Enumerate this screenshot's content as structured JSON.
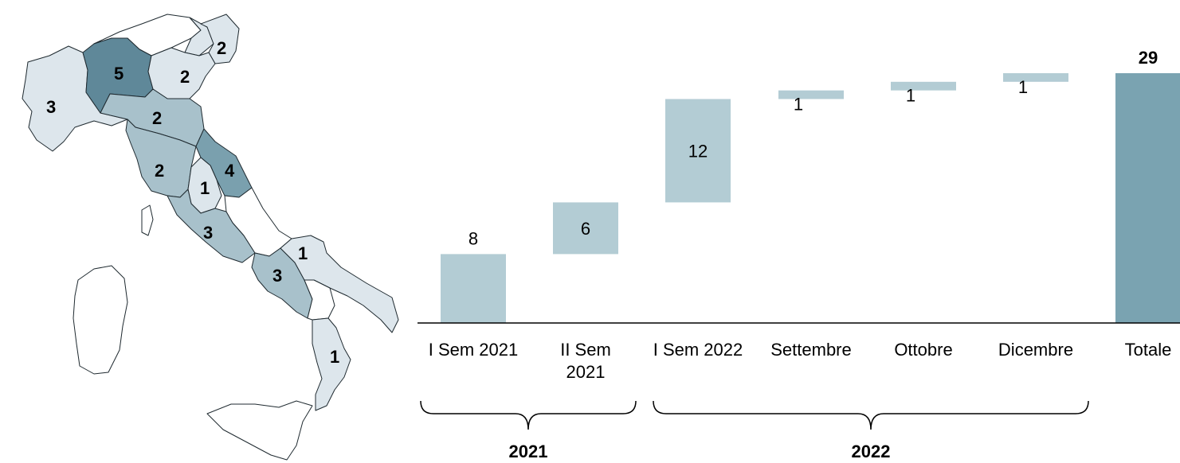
{
  "colors": {
    "light": "#dde6ec",
    "medium": "#a8c1cb",
    "dark": "#7aa0ae",
    "darkest": "#5f8899",
    "bar": "#b3ccd4",
    "total": "#7aa3b1",
    "white": "#ffffff"
  },
  "map": {
    "regions": [
      {
        "name": "valle-piemonte",
        "value": "3",
        "shade": "light"
      },
      {
        "name": "lombardia",
        "value": "5",
        "shade": "darkest"
      },
      {
        "name": "veneto",
        "value": "2",
        "shade": "light"
      },
      {
        "name": "trentino",
        "value": "2",
        "shade": "light"
      },
      {
        "name": "emilia-romagna",
        "value": "2",
        "shade": "medium"
      },
      {
        "name": "toscana",
        "value": "2",
        "shade": "medium"
      },
      {
        "name": "umbria",
        "value": "1",
        "shade": "light"
      },
      {
        "name": "marche",
        "value": "4",
        "shade": "dark"
      },
      {
        "name": "lazio",
        "value": "3",
        "shade": "medium"
      },
      {
        "name": "campania",
        "value": "3",
        "shade": "medium"
      },
      {
        "name": "puglia",
        "value": "1",
        "shade": "light"
      },
      {
        "name": "calabria",
        "value": "1",
        "shade": "light"
      }
    ]
  },
  "chart_data": {
    "type": "waterfall",
    "categories": [
      "I Sem 2021",
      "II Sem\n2021",
      "I Sem 2022",
      "Settembre",
      "Ottobre",
      "Dicembre",
      "Totale"
    ],
    "values": [
      8,
      6,
      12,
      1,
      1,
      1,
      29
    ],
    "total_index": 6,
    "ylim": [
      0,
      29
    ],
    "groups": [
      {
        "label": "2021",
        "from": 0,
        "to": 1
      },
      {
        "label": "2022",
        "from": 2,
        "to": 5
      }
    ],
    "grid": false,
    "legend": "none"
  }
}
